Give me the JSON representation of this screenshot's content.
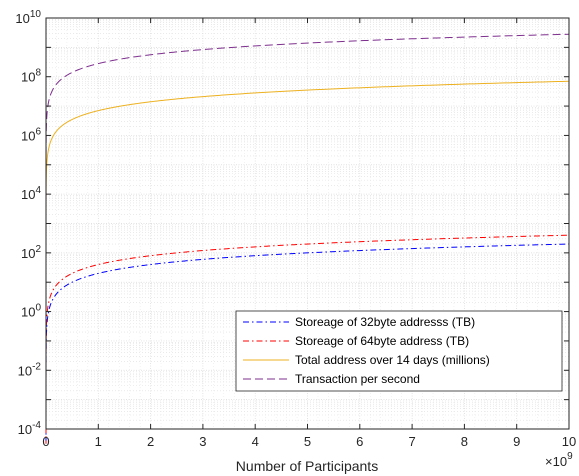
{
  "chart_data": {
    "type": "line",
    "title": "",
    "xlabel": "Number of Participants",
    "ylabel": "",
    "x_multiplier_label": "×10",
    "x_multiplier_exp": "9",
    "xlim": [
      0,
      10
    ],
    "ylim_log10": [
      -4,
      10
    ],
    "y_scale": "log",
    "grid": "on (major and minor)",
    "legend_location": "lower-right",
    "x_ticks": [
      "0",
      "1",
      "2",
      "3",
      "4",
      "5",
      "6",
      "7",
      "8",
      "9",
      "10"
    ],
    "y_ticks": [
      {
        "base": "10",
        "exp": "-4"
      },
      {
        "base": "10",
        "exp": "-2"
      },
      {
        "base": "10",
        "exp": "0"
      },
      {
        "base": "10",
        "exp": "2"
      },
      {
        "base": "10",
        "exp": "4"
      },
      {
        "base": "10",
        "exp": "6"
      },
      {
        "base": "10",
        "exp": "8"
      },
      {
        "base": "10",
        "exp": "10"
      }
    ],
    "x": [
      0.0,
      0.001,
      0.01,
      0.05,
      0.1,
      0.2,
      0.5,
      1,
      2,
      3,
      4,
      5,
      6,
      7,
      8,
      9,
      10
    ],
    "series": [
      {
        "name": "Storeage of 32byte addresss (TB)",
        "color": "#0000ff",
        "dash": "dash-dot",
        "values": [
          2e-05,
          0.02,
          0.2,
          1,
          2,
          4,
          10,
          20,
          40,
          60,
          80,
          100,
          120,
          140,
          160,
          180,
          200
        ]
      },
      {
        "name": "Storeage of 64byte address (TB)",
        "color": "#ff0000",
        "dash": "dash-dot",
        "values": [
          4e-05,
          0.04,
          0.4,
          2,
          4,
          8,
          20,
          40,
          80,
          120,
          160,
          200,
          240,
          280,
          320,
          360,
          400
        ]
      },
      {
        "name": "Total address over 14 days (millions)",
        "color": "#edb120",
        "dash": "solid",
        "values": [
          70,
          7000,
          70000,
          350000,
          700000,
          1400000,
          3500000,
          7000000,
          14000000,
          21000000,
          28000000,
          35000000,
          42000000,
          49000000,
          56000000,
          63000000,
          70000000
        ]
      },
      {
        "name": "Transaction per second",
        "color": "#7e2f8e",
        "dash": "dashed",
        "values": [
          280,
          280000,
          2800000,
          14000000,
          28000000,
          56000000,
          140000000,
          280000000,
          560000000,
          840000000,
          1120000000,
          1400000000,
          1680000000,
          1960000000,
          2240000000,
          2520000000,
          2800000000
        ]
      }
    ]
  }
}
